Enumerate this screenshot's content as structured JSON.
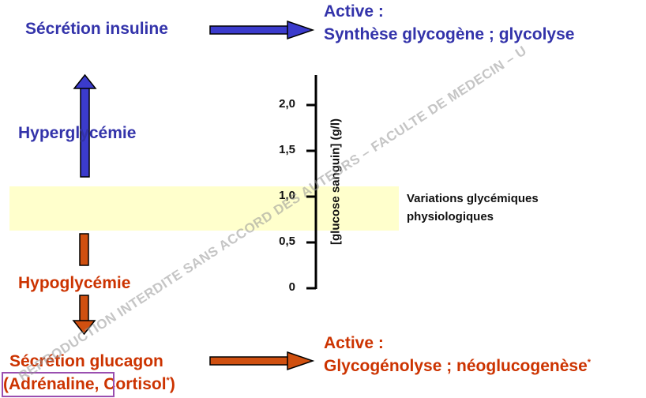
{
  "top": {
    "secretion": "Sécrétion insuline",
    "active": "Active :",
    "effect": "Synthèse glycogène ; glycolyse"
  },
  "hyper": "Hyperglycémie",
  "hypo": "Hypoglycémie",
  "bottom": {
    "secretion": "Sécrétion glucagon",
    "hormones_open": "(",
    "hormones_boxed": "Adrénaline,",
    "hormones_rest": " Cortisol",
    "hormones_star": "*",
    "hormones_close": ")",
    "active": "Active :",
    "effect": "Glycogénolyse ; néoglucogenèse",
    "effect_star": "*"
  },
  "scale": {
    "axis_label": "[glucose sanguin] (g/l)",
    "ticks": [
      "2,0",
      "1,5",
      "1,0",
      "0,5",
      "0"
    ]
  },
  "band_label": [
    "Variations glycémiques",
    "physiologiques"
  ],
  "watermark": "REPRODUCTION INTERDITE SANS ACCORD DES AUTEURS – FACULTE DE MEDECIN – U",
  "colors": {
    "blue": "#3333aa",
    "red": "#cc3300",
    "band": "#ffffcc",
    "box": "#9a4fb0"
  }
}
